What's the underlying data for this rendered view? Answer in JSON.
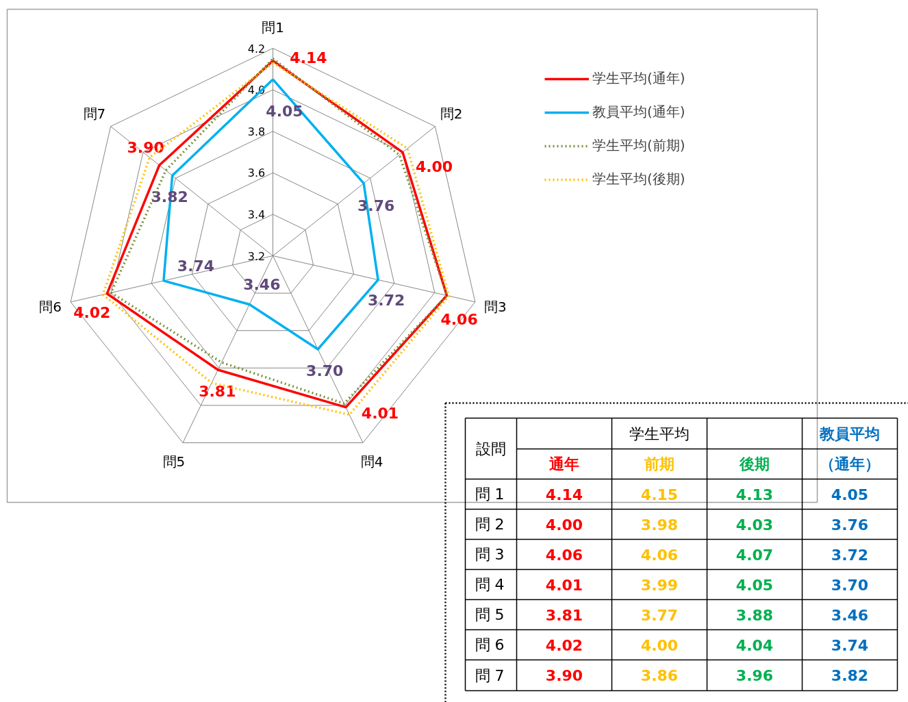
{
  "chart_data": [
    {
      "type": "radar",
      "categories": [
        "問1",
        "問2",
        "問3",
        "問4",
        "問5",
        "問6",
        "問7"
      ],
      "ylim": [
        3.2,
        4.2
      ],
      "yticks": [
        {
          "value": 3.2,
          "label": "3.2"
        },
        3.4,
        3.6,
        3.8,
        {
          "value": 4.0,
          "label": "4.0"
        },
        4.2
      ],
      "grid": true,
      "legend": "top right",
      "marker": "none",
      "series": [
        {
          "name": "学生平均(通年)",
          "color": "#ff0000",
          "line_style": "solid",
          "values": [
            4.14,
            4.0,
            4.06,
            4.01,
            3.81,
            4.02,
            3.9
          ],
          "value_labels": [
            "4.14",
            "4.00",
            "4.06",
            "4.01",
            "3.81",
            "4.02",
            "3.90"
          ]
        },
        {
          "name": "教員平均(通年)",
          "color": "#00b0f0",
          "line_style": "solid",
          "values": [
            4.05,
            3.76,
            3.72,
            3.7,
            3.46,
            3.74,
            3.82
          ],
          "value_labels": [
            "4.05",
            "3.76",
            "3.72",
            "3.70",
            "3.46",
            "3.74",
            "3.82"
          ]
        },
        {
          "name": "学生平均(前期)",
          "color": "#77933c",
          "line_style": "dotted",
          "values": [
            4.15,
            3.98,
            4.06,
            3.99,
            3.77,
            4.0,
            3.86
          ]
        },
        {
          "name": "学生平均(後期)",
          "color": "#ffc000",
          "line_style": "dotted",
          "values": [
            4.13,
            4.03,
            4.07,
            4.05,
            3.88,
            4.04,
            3.96
          ]
        }
      ]
    },
    {
      "type": "other",
      "categories": [
        "問 1",
        "問 2",
        "問 3",
        "問 4",
        "問 5",
        "問 6",
        "問 7"
      ],
      "annotations": [
        "設問",
        "学生平均",
        "教員平均"
      ],
      "series": [
        {
          "name": "通年",
          "color": "#ff0000",
          "values": [
            4.14,
            4.0,
            4.06,
            4.01,
            3.81,
            4.02,
            3.9
          ],
          "value_labels": [
            "4.14",
            "4.00",
            "4.06",
            "4.01",
            "3.81",
            "4.02",
            "3.90"
          ]
        },
        {
          "name": "前期",
          "color": "#ffc000",
          "values": [
            4.15,
            3.98,
            4.06,
            3.99,
            3.77,
            4.0,
            3.86
          ],
          "value_labels": [
            "4.15",
            "3.98",
            "4.06",
            "3.99",
            "3.77",
            "4.00",
            "3.86"
          ]
        },
        {
          "name": "後期",
          "color": "#00b050",
          "values": [
            4.13,
            4.03,
            4.07,
            4.05,
            3.88,
            4.04,
            3.96
          ],
          "value_labels": [
            "4.13",
            "4.03",
            "4.07",
            "4.05",
            "3.88",
            "4.04",
            "3.96"
          ]
        },
        {
          "name": "（通年）",
          "color": "#0070c0",
          "values": [
            4.05,
            3.76,
            3.72,
            3.7,
            3.46,
            3.74,
            3.82
          ],
          "value_labels": [
            "4.05",
            "3.76",
            "3.72",
            "3.70",
            "3.46",
            "3.74",
            "3.82"
          ]
        }
      ]
    }
  ]
}
